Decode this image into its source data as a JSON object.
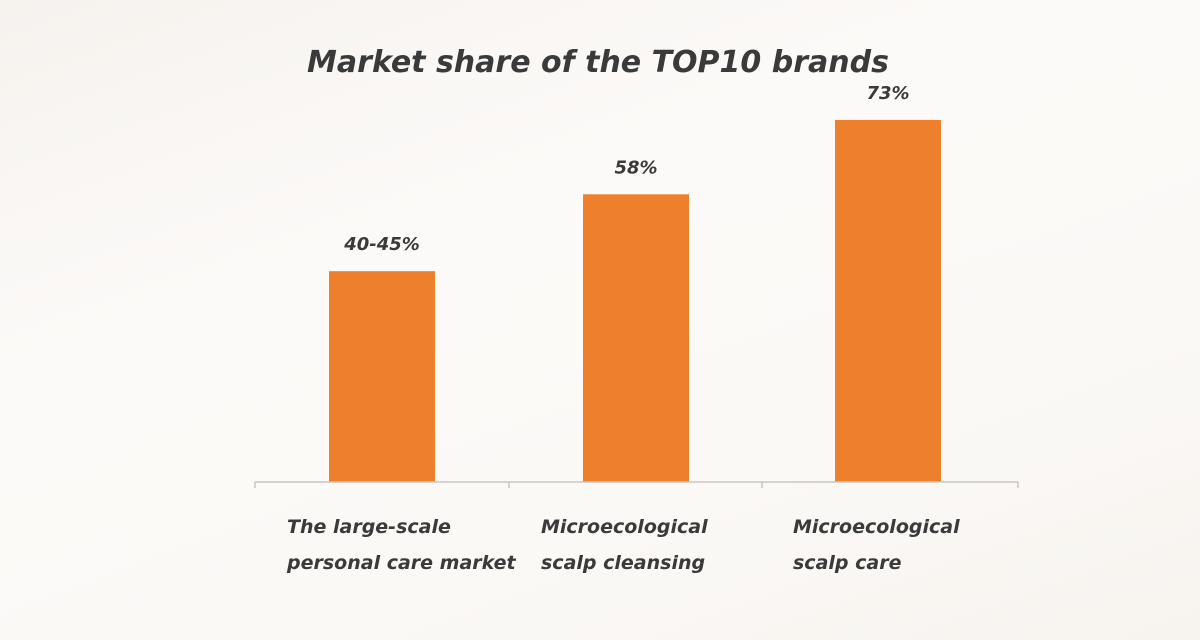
{
  "chart_data": {
    "type": "bar",
    "title": "Market share of the TOP10 brands",
    "xlabel": "",
    "ylabel": "",
    "categories": [
      [
        "The large-scale",
        "personal care market"
      ],
      [
        "Microecological",
        "scalp cleansing"
      ],
      [
        "Microecological",
        "scalp care"
      ]
    ],
    "values": [
      42.5,
      58,
      73
    ],
    "data_labels": [
      "40-45%",
      "58%",
      "73%"
    ],
    "ylim": [
      0,
      80
    ],
    "grid": false,
    "legend": "none",
    "bar_color": "#ee7f2d",
    "axis_color": "#c9c6c2",
    "text_color": "#3a3a3a"
  }
}
